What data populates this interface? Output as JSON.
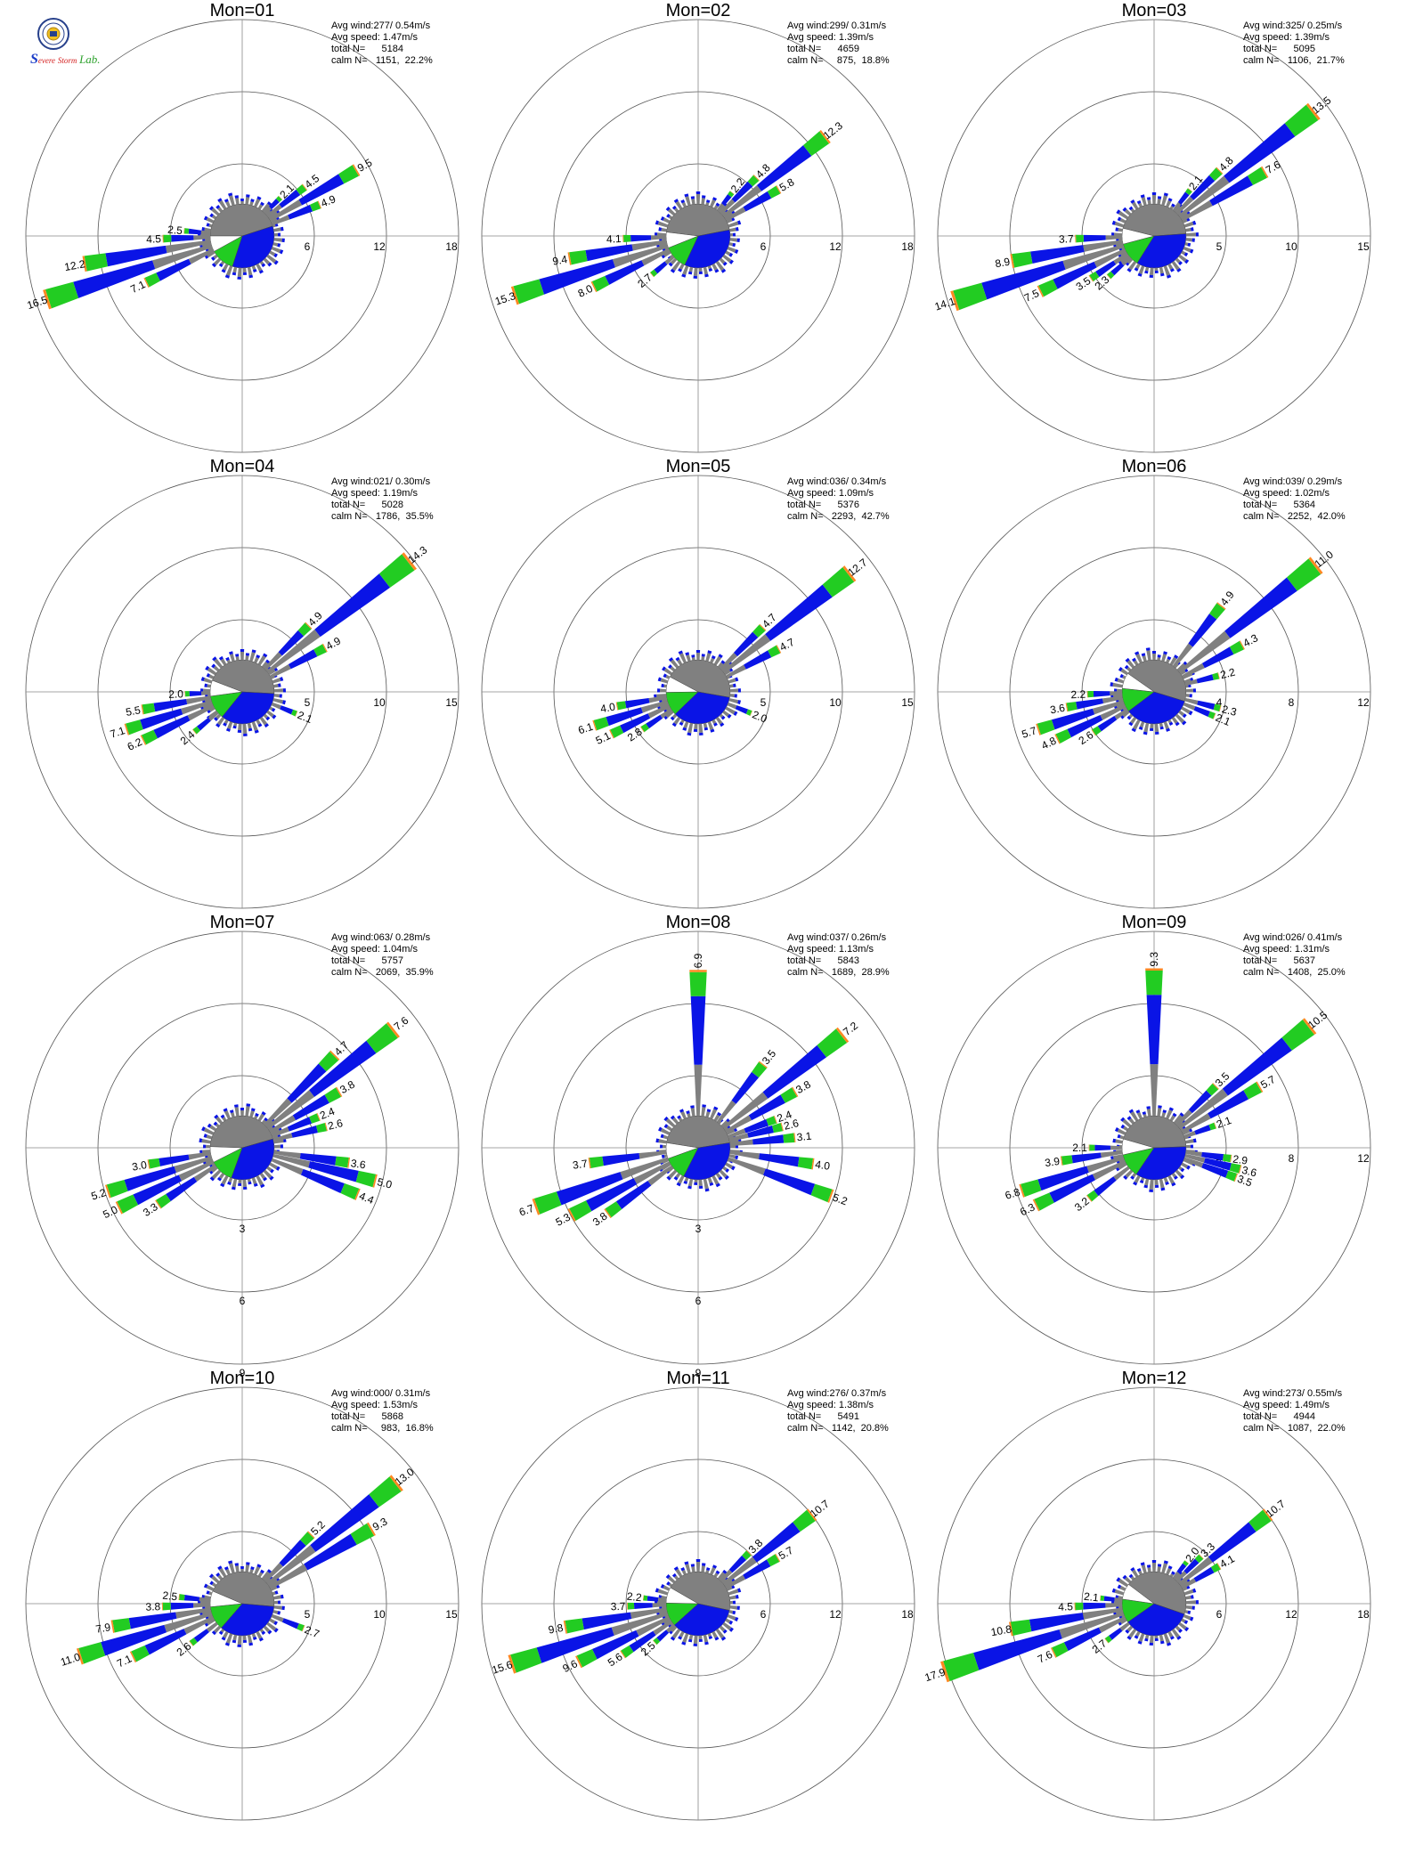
{
  "colors": {
    "speed_low": "#808080",
    "speed_mid": "#0a14e6",
    "speed_high": "#22cc22",
    "speed_top": "#ff8822",
    "speed_max": "#dd2222",
    "ring": "#555555",
    "axis": "#888888"
  },
  "logo": {
    "icon": "university-seal-icon",
    "lettering": [
      "S",
      "evere",
      "Storm",
      "Lab."
    ]
  },
  "chart_data": [
    {
      "type": "wind-rose",
      "title": "Mon=01",
      "avg_wind": "Avg wind:277/ 0.54m/s",
      "avg_speed": "Avg speed: 1.47m/s",
      "total_n": "total N=      5184",
      "calm_n": "calm N=   1151,  22.2%",
      "rings": [
        6,
        12,
        18
      ],
      "calm_pct": 22.2,
      "petals": [
        {
          "dir": 60,
          "value": 9.5,
          "label": "9.5"
        },
        {
          "dir": 52,
          "value": 4.5,
          "label": "4.5"
        },
        {
          "dir": 45,
          "value": 2.1,
          "label": "2.1"
        },
        {
          "dir": 68,
          "value": 4.9,
          "label": "4.9"
        },
        {
          "dir": 252,
          "value": 16.5,
          "label": "16.5"
        },
        {
          "dir": 260,
          "value": 12.2,
          "label": "12.2"
        },
        {
          "dir": 268,
          "value": 4.5,
          "label": "4.5"
        },
        {
          "dir": 275,
          "value": 2.5,
          "label": "2.5"
        },
        {
          "dir": 244,
          "value": 7.1,
          "label": "7.1"
        }
      ]
    },
    {
      "type": "wind-rose",
      "title": "Mon=02",
      "avg_wind": "Avg wind:299/ 0.31m/s",
      "avg_speed": "Avg speed: 1.39m/s",
      "total_n": "total N=      4659",
      "calm_n": "calm N=     875,  18.8%",
      "rings": [
        6,
        12,
        18
      ],
      "calm_pct": 18.8,
      "petals": [
        {
          "dir": 52,
          "value": 12.3,
          "label": "12.3"
        },
        {
          "dir": 45,
          "value": 4.8,
          "label": "4.8"
        },
        {
          "dir": 60,
          "value": 5.8,
          "label": "5.8"
        },
        {
          "dir": 38,
          "value": 2.2,
          "label": "2.2"
        },
        {
          "dir": 252,
          "value": 15.3,
          "label": "15.3"
        },
        {
          "dir": 260,
          "value": 9.4,
          "label": "9.4"
        },
        {
          "dir": 268,
          "value": 4.1,
          "label": "4.1"
        },
        {
          "dir": 244,
          "value": 8.0,
          "label": "8.0"
        },
        {
          "dir": 230,
          "value": 2.7,
          "label": "2.7"
        }
      ]
    },
    {
      "type": "wind-rose",
      "title": "Mon=03",
      "avg_wind": "Avg wind:325/ 0.25m/s",
      "avg_speed": "Avg speed: 1.39m/s",
      "total_n": "total N=      5095",
      "calm_n": "calm N=   1106,  21.7%",
      "rings": [
        5,
        10,
        15
      ],
      "calm_pct": 21.7,
      "petals": [
        {
          "dir": 52,
          "value": 13.5,
          "label": "13.5"
        },
        {
          "dir": 45,
          "value": 4.8,
          "label": "4.8"
        },
        {
          "dir": 60,
          "value": 7.6,
          "label": "7.6"
        },
        {
          "dir": 38,
          "value": 2.1,
          "label": "2.1"
        },
        {
          "dir": 252,
          "value": 14.1,
          "label": "14.1"
        },
        {
          "dir": 260,
          "value": 8.9,
          "label": "8.9"
        },
        {
          "dir": 268,
          "value": 3.7,
          "label": "3.7"
        },
        {
          "dir": 244,
          "value": 7.5,
          "label": "7.5"
        },
        {
          "dir": 236,
          "value": 3.5,
          "label": "3.5"
        },
        {
          "dir": 228,
          "value": 2.3,
          "label": "2.3"
        }
      ]
    },
    {
      "type": "wind-rose",
      "title": "Mon=04",
      "avg_wind": "Avg wind:021/ 0.30m/s",
      "avg_speed": "Avg speed: 1.19m/s",
      "total_n": "total N=      5028",
      "calm_n": "calm N=   1786,  35.5%",
      "rings": [
        5,
        10,
        15
      ],
      "calm_pct": 35.5,
      "petals": [
        {
          "dir": 52,
          "value": 14.3,
          "label": "14.3"
        },
        {
          "dir": 45,
          "value": 4.9,
          "label": "4.9"
        },
        {
          "dir": 62,
          "value": 4.9,
          "label": "4.9"
        },
        {
          "dir": 112,
          "value": 2.1,
          "label": "2.1"
        },
        {
          "dir": 252,
          "value": 7.1,
          "label": "7.1"
        },
        {
          "dir": 260,
          "value": 5.5,
          "label": "5.5"
        },
        {
          "dir": 268,
          "value": 2.0,
          "label": "2.0"
        },
        {
          "dir": 244,
          "value": 6.2,
          "label": "6.2"
        },
        {
          "dir": 230,
          "value": 2.4,
          "label": "2.4"
        }
      ]
    },
    {
      "type": "wind-rose",
      "title": "Mon=05",
      "avg_wind": "Avg wind:036/ 0.34m/s",
      "avg_speed": "Avg speed: 1.09m/s",
      "total_n": "total N=      5376",
      "calm_n": "calm N=   2293,  42.7%",
      "rings": [
        5,
        10,
        15
      ],
      "calm_pct": 42.7,
      "petals": [
        {
          "dir": 52,
          "value": 12.7,
          "label": "12.7"
        },
        {
          "dir": 45,
          "value": 4.7,
          "label": "4.7"
        },
        {
          "dir": 62,
          "value": 4.7,
          "label": "4.7"
        },
        {
          "dir": 112,
          "value": 2.0,
          "label": "2.0"
        },
        {
          "dir": 252,
          "value": 6.1,
          "label": "6.1"
        },
        {
          "dir": 260,
          "value": 4.0,
          "label": "4.0"
        },
        {
          "dir": 244,
          "value": 5.1,
          "label": "5.1"
        },
        {
          "dir": 236,
          "value": 2.8,
          "label": "2.8"
        }
      ]
    },
    {
      "type": "wind-rose",
      "title": "Mon=06",
      "avg_wind": "Avg wind:039/ 0.29m/s",
      "avg_speed": "Avg speed: 1.02m/s",
      "total_n": "total N=      5364",
      "calm_n": "calm N=   2252,  42.0%",
      "rings": [
        4,
        8,
        12
      ],
      "calm_pct": 42.0,
      "petals": [
        {
          "dir": 52,
          "value": 11.0,
          "label": "11.0"
        },
        {
          "dir": 38,
          "value": 4.9,
          "label": "4.9"
        },
        {
          "dir": 62,
          "value": 4.3,
          "label": "4.3"
        },
        {
          "dir": 76,
          "value": 2.2,
          "label": "2.2"
        },
        {
          "dir": 104,
          "value": 2.3,
          "label": "2.3"
        },
        {
          "dir": 112,
          "value": 2.1,
          "label": "2.1"
        },
        {
          "dir": 252,
          "value": 5.7,
          "label": "5.7"
        },
        {
          "dir": 260,
          "value": 3.6,
          "label": "3.6"
        },
        {
          "dir": 268,
          "value": 2.2,
          "label": "2.2"
        },
        {
          "dir": 244,
          "value": 4.8,
          "label": "4.8"
        },
        {
          "dir": 236,
          "value": 2.6,
          "label": "2.6"
        }
      ]
    },
    {
      "type": "wind-rose",
      "title": "Mon=07",
      "avg_wind": "Avg wind:063/ 0.28m/s",
      "avg_speed": "Avg speed: 1.04m/s",
      "total_n": "total N=      5757",
      "calm_n": "calm N=   2069,  35.9%",
      "rings": [
        3,
        6,
        9
      ],
      "calm_pct": 35.9,
      "petals": [
        {
          "dir": 52,
          "value": 7.6,
          "label": "7.6"
        },
        {
          "dir": 45,
          "value": 4.7,
          "label": "4.7"
        },
        {
          "dir": 60,
          "value": 3.8,
          "label": "3.8"
        },
        {
          "dir": 68,
          "value": 2.4,
          "label": "2.4"
        },
        {
          "dir": 76,
          "value": 2.6,
          "label": "2.6"
        },
        {
          "dir": 98,
          "value": 3.6,
          "label": "3.6"
        },
        {
          "dir": 104,
          "value": 5.0,
          "label": "5.0"
        },
        {
          "dir": 112,
          "value": 4.4,
          "label": "4.4"
        },
        {
          "dir": 252,
          "value": 5.2,
          "label": "5.2"
        },
        {
          "dir": 260,
          "value": 3.0,
          "label": "3.0"
        },
        {
          "dir": 244,
          "value": 5.0,
          "label": "5.0"
        },
        {
          "dir": 236,
          "value": 3.3,
          "label": "3.3"
        }
      ]
    },
    {
      "type": "wind-rose",
      "title": "Mon=08",
      "avg_wind": "Avg wind:037/ 0.26m/s",
      "avg_speed": "Avg speed: 1.13m/s",
      "total_n": "total N=      5843",
      "calm_n": "calm N=   1689,  28.9%",
      "rings": [
        3,
        6,
        9
      ],
      "calm_pct": 28.9,
      "petals": [
        {
          "dir": 0,
          "value": 6.9,
          "label": "6.9"
        },
        {
          "dir": 52,
          "value": 7.2,
          "label": "7.2"
        },
        {
          "dir": 38,
          "value": 3.5,
          "label": "3.5"
        },
        {
          "dir": 60,
          "value": 3.8,
          "label": "3.8"
        },
        {
          "dir": 70,
          "value": 2.4,
          "label": "2.4"
        },
        {
          "dir": 76,
          "value": 2.6,
          "label": "2.6"
        },
        {
          "dir": 84,
          "value": 3.1,
          "label": "3.1"
        },
        {
          "dir": 98,
          "value": 4.0,
          "label": "4.0"
        },
        {
          "dir": 110,
          "value": 5.2,
          "label": "5.2"
        },
        {
          "dir": 250,
          "value": 6.7,
          "label": "6.7"
        },
        {
          "dir": 262,
          "value": 3.7,
          "label": "3.7"
        },
        {
          "dir": 242,
          "value": 5.3,
          "label": "5.3"
        },
        {
          "dir": 234,
          "value": 3.8,
          "label": "3.8"
        }
      ]
    },
    {
      "type": "wind-rose",
      "title": "Mon=09",
      "avg_wind": "Avg wind:026/ 0.41m/s",
      "avg_speed": "Avg speed: 1.31m/s",
      "total_n": "total N=      5637",
      "calm_n": "calm N=   1408,  25.0%",
      "rings": [
        4,
        8,
        12
      ],
      "calm_pct": 25.0,
      "petals": [
        {
          "dir": 0,
          "value": 9.3,
          "label": "9.3"
        },
        {
          "dir": 52,
          "value": 10.5,
          "label": "10.5"
        },
        {
          "dir": 45,
          "value": 3.5,
          "label": "3.5"
        },
        {
          "dir": 60,
          "value": 5.7,
          "label": "5.7"
        },
        {
          "dir": 70,
          "value": 2.1,
          "label": "2.1"
        },
        {
          "dir": 98,
          "value": 2.9,
          "label": "2.9"
        },
        {
          "dir": 104,
          "value": 3.6,
          "label": "3.6"
        },
        {
          "dir": 110,
          "value": 3.5,
          "label": "3.5"
        },
        {
          "dir": 252,
          "value": 6.8,
          "label": "6.8"
        },
        {
          "dir": 262,
          "value": 3.9,
          "label": "3.9"
        },
        {
          "dir": 270,
          "value": 2.1,
          "label": "2.1"
        },
        {
          "dir": 244,
          "value": 6.3,
          "label": "6.3"
        },
        {
          "dir": 232,
          "value": 3.2,
          "label": "3.2"
        }
      ]
    },
    {
      "type": "wind-rose",
      "title": "Mon=10",
      "avg_wind": "Avg wind:000/ 0.31m/s",
      "avg_speed": "Avg speed: 1.53m/s",
      "total_n": "total N=      5868",
      "calm_n": "calm N=     983,  16.8%",
      "rings": [
        5,
        10,
        15
      ],
      "calm_pct": 16.8,
      "petals": [
        {
          "dir": 52,
          "value": 13.0,
          "label": "13.0"
        },
        {
          "dir": 45,
          "value": 5.2,
          "label": "5.2"
        },
        {
          "dir": 60,
          "value": 9.3,
          "label": "9.3"
        },
        {
          "dir": 112,
          "value": 2.7,
          "label": "2.7"
        },
        {
          "dir": 252,
          "value": 11.0,
          "label": "11.0"
        },
        {
          "dir": 260,
          "value": 7.9,
          "label": "7.9"
        },
        {
          "dir": 268,
          "value": 3.8,
          "label": "3.8"
        },
        {
          "dir": 276,
          "value": 2.5,
          "label": "2.5"
        },
        {
          "dir": 244,
          "value": 7.1,
          "label": "7.1"
        },
        {
          "dir": 232,
          "value": 2.6,
          "label": "2.6"
        }
      ]
    },
    {
      "type": "wind-rose",
      "title": "Mon=11",
      "avg_wind": "Avg wind:276/ 0.37m/s",
      "avg_speed": "Avg speed: 1.38m/s",
      "total_n": "total N=      5491",
      "calm_n": "calm N=   1142,  20.8%",
      "rings": [
        6,
        12,
        18
      ],
      "calm_pct": 20.8,
      "petals": [
        {
          "dir": 52,
          "value": 10.7,
          "label": "10.7"
        },
        {
          "dir": 45,
          "value": 3.8,
          "label": "3.8"
        },
        {
          "dir": 60,
          "value": 5.7,
          "label": "5.7"
        },
        {
          "dir": 252,
          "value": 15.6,
          "label": "15.6"
        },
        {
          "dir": 260,
          "value": 9.8,
          "label": "9.8"
        },
        {
          "dir": 268,
          "value": 3.7,
          "label": "3.7"
        },
        {
          "dir": 276,
          "value": 2.2,
          "label": "2.2"
        },
        {
          "dir": 244,
          "value": 9.6,
          "label": "9.6"
        },
        {
          "dir": 236,
          "value": 5.6,
          "label": "5.6"
        },
        {
          "dir": 228,
          "value": 2.5,
          "label": "2.5"
        }
      ]
    },
    {
      "type": "wind-rose",
      "title": "Mon=12",
      "avg_wind": "Avg wind:273/ 0.55m/s",
      "avg_speed": "Avg speed: 1.49m/s",
      "total_n": "total N=      4944",
      "calm_n": "calm N=   1087,  22.0%",
      "rings": [
        6,
        12,
        18
      ],
      "calm_pct": 22.0,
      "petals": [
        {
          "dir": 52,
          "value": 10.7,
          "label": "10.7"
        },
        {
          "dir": 45,
          "value": 3.3,
          "label": "3.3"
        },
        {
          "dir": 38,
          "value": 2.0,
          "label": "2.0"
        },
        {
          "dir": 60,
          "value": 4.1,
          "label": "4.1"
        },
        {
          "dir": 252,
          "value": 17.9,
          "label": "17.9"
        },
        {
          "dir": 260,
          "value": 10.8,
          "label": "10.8"
        },
        {
          "dir": 268,
          "value": 4.5,
          "label": "4.5"
        },
        {
          "dir": 276,
          "value": 2.1,
          "label": "2.1"
        },
        {
          "dir": 244,
          "value": 7.6,
          "label": "7.6"
        },
        {
          "dir": 232,
          "value": 2.7,
          "label": "2.7"
        }
      ]
    }
  ]
}
